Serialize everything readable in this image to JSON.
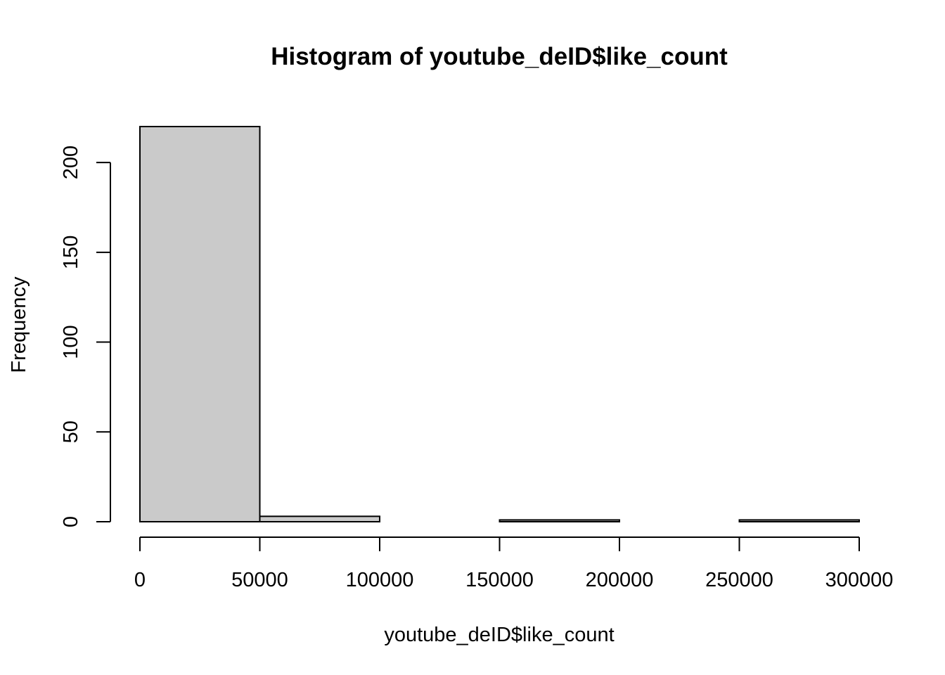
{
  "chart_data": {
    "type": "bar",
    "subtype": "histogram",
    "title": "Histogram of youtube_deID$like_count",
    "xlabel": "youtube_deID$like_count",
    "ylabel": "Frequency",
    "bins": [
      {
        "start": 0,
        "end": 50000,
        "count": 220
      },
      {
        "start": 50000,
        "end": 100000,
        "count": 3
      },
      {
        "start": 100000,
        "end": 150000,
        "count": 0
      },
      {
        "start": 150000,
        "end": 200000,
        "count": 1
      },
      {
        "start": 200000,
        "end": 250000,
        "count": 0
      },
      {
        "start": 250000,
        "end": 300000,
        "count": 1
      }
    ],
    "xlim": [
      0,
      300000
    ],
    "ylim": [
      0,
      220
    ],
    "x_ticks": [
      0,
      50000,
      100000,
      150000,
      200000,
      250000,
      300000
    ],
    "x_tick_labels": [
      "0",
      "50000",
      "100000",
      "150000",
      "200000",
      "250000",
      "300000"
    ],
    "y_ticks": [
      0,
      50,
      100,
      150,
      200
    ],
    "y_tick_labels": [
      "0",
      "50",
      "100",
      "150",
      "200"
    ],
    "grid": false,
    "bar_color": "#cacaca",
    "edge_color": "#000000"
  }
}
